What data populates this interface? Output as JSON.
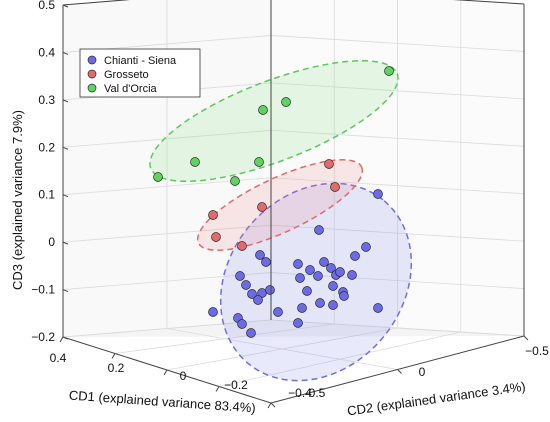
{
  "chart_data": {
    "type": "scatter",
    "projection": "3d",
    "axes": {
      "x": {
        "label": "CD1 (explained variance 83.4%)",
        "ticks": [
          "0.4",
          "0.2",
          "0",
          "−0.2",
          "−0.4"
        ]
      },
      "y": {
        "label": "CD2 (explained variance 3.4%)",
        "ticks": [
          "0.5",
          "0",
          "−0.5"
        ]
      },
      "z": {
        "label": "CD3 (explained variance 7.9%)",
        "ticks": [
          "0.5",
          "0.4",
          "0.3",
          "0.2",
          "0.1",
          "0",
          "−0.1",
          "−0.2"
        ],
        "range": [
          -0.2,
          0.5
        ]
      }
    },
    "grid": true,
    "legend_position": "top-left",
    "confidence_ellipses": true,
    "series": [
      {
        "name": "Chianti - Siena",
        "color": "#6b6be8",
        "points": [
          [
            378,
            194
          ],
          [
            319,
            230
          ],
          [
            366,
            247
          ],
          [
            355,
            256
          ],
          [
            260,
            255
          ],
          [
            266,
            262
          ],
          [
            298,
            264
          ],
          [
            310,
            270
          ],
          [
            324,
            262
          ],
          [
            331,
            268
          ],
          [
            336,
            275
          ],
          [
            340,
            272
          ],
          [
            352,
            275
          ],
          [
            300,
            278
          ],
          [
            318,
            276
          ],
          [
            333,
            286
          ],
          [
            307,
            291
          ],
          [
            343,
            292
          ],
          [
            240,
            276
          ],
          [
            246,
            285
          ],
          [
            252,
            294
          ],
          [
            262,
            293
          ],
          [
            270,
            290
          ],
          [
            258,
            300
          ],
          [
            278,
            312
          ],
          [
            302,
            308
          ],
          [
            320,
            303
          ],
          [
            333,
            305
          ],
          [
            344,
            296
          ],
          [
            298,
            323
          ],
          [
            378,
            308
          ],
          [
            213,
            312
          ],
          [
            238,
            318
          ],
          [
            242,
            324
          ],
          [
            251,
            333
          ]
        ]
      },
      {
        "name": "Grosseto",
        "color": "#e26a6a",
        "points": [
          [
            329,
            164
          ],
          [
            335,
            187
          ],
          [
            213,
            215
          ],
          [
            262,
            207
          ],
          [
            216,
            237
          ],
          [
            242,
            246
          ]
        ]
      },
      {
        "name": "Val d'Orcia",
        "color": "#5fd35f",
        "points": [
          [
            389,
            71
          ],
          [
            286,
            102
          ],
          [
            263,
            110
          ],
          [
            195,
            162
          ],
          [
            259,
            162
          ],
          [
            158,
            177
          ],
          [
            235,
            181
          ]
        ]
      }
    ]
  }
}
